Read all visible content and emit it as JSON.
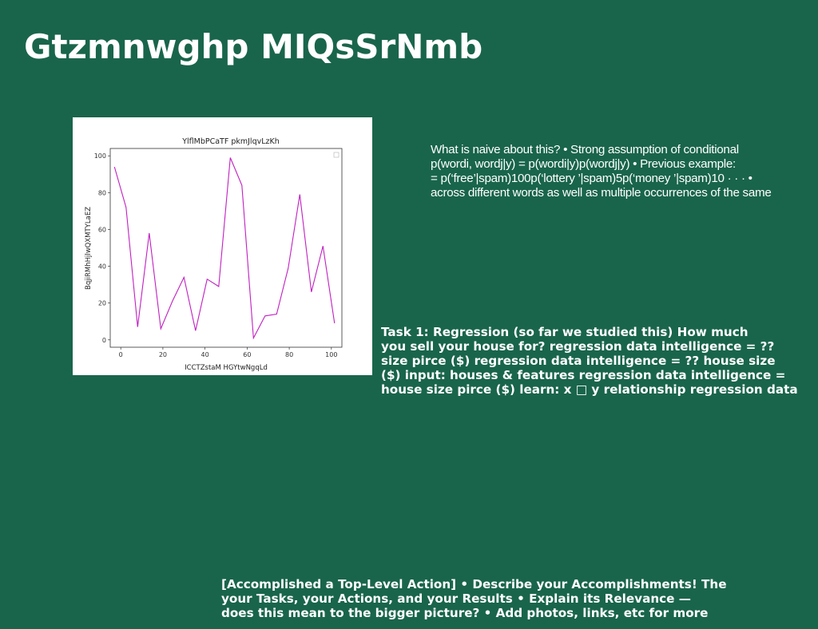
{
  "slide": {
    "title": "Gtzmnwghp MIQsSrNmb"
  },
  "text_block_1": {
    "lines": [
      "What is naive about this? • Strong assumption of conditional",
      "p(wordi, wordj|y) = p(wordi|y)p(wordj|y) • Previous example:",
      "= p(‘free’|spam)100p(‘lottery ’|spam)5p(‘money ’|spam)10 · · · •",
      "across different words as well as multiple occurrences of the same"
    ]
  },
  "text_block_2": {
    "lines": [
      "Task 1: Regression (so far we studied this) How much",
      "you sell your house for? regression data intelligence = ??",
      "size pirce ($) regression data intelligence = ?? house size",
      "($) input: houses & features regression data intelligence =",
      "house size pirce ($) learn: x □ y relationship regression data"
    ]
  },
  "text_block_3": {
    "lines": [
      "[Accomplished a Top-Level Action] • Describe your Accomplishments! The",
      "your Tasks, your Actions, and your Results • Explain its Relevance —",
      "does this mean to the bigger picture? • Add photos, links, etc for more"
    ]
  },
  "chart_data": {
    "type": "line",
    "title": "YlflMbPCaTF pkmJlqvLzKh",
    "xlabel": "ICCTZstaM HGYtwNgqLd",
    "ylabel": "BqjiRMhHjlwQXMTYLaEZ",
    "xlim": [
      -5,
      105
    ],
    "ylim": [
      -4,
      104
    ],
    "xticks": [
      0,
      20,
      40,
      60,
      80,
      100
    ],
    "yticks": [
      0,
      20,
      40,
      60,
      80,
      100
    ],
    "grid": false,
    "legend": "top-right (empty)",
    "series": [
      {
        "color": "#c020c0",
        "x": [
          -3,
          2.5,
          8,
          13.5,
          19,
          24.5,
          30,
          35.5,
          41,
          46.5,
          52,
          57.5,
          63,
          68.5,
          74,
          79.5,
          85,
          90.5,
          96,
          101.5
        ],
        "y": [
          94,
          72,
          7,
          58,
          6,
          21,
          34,
          5,
          33,
          29,
          99,
          84,
          1,
          13,
          14,
          39,
          79,
          26,
          51,
          9
        ]
      }
    ]
  }
}
